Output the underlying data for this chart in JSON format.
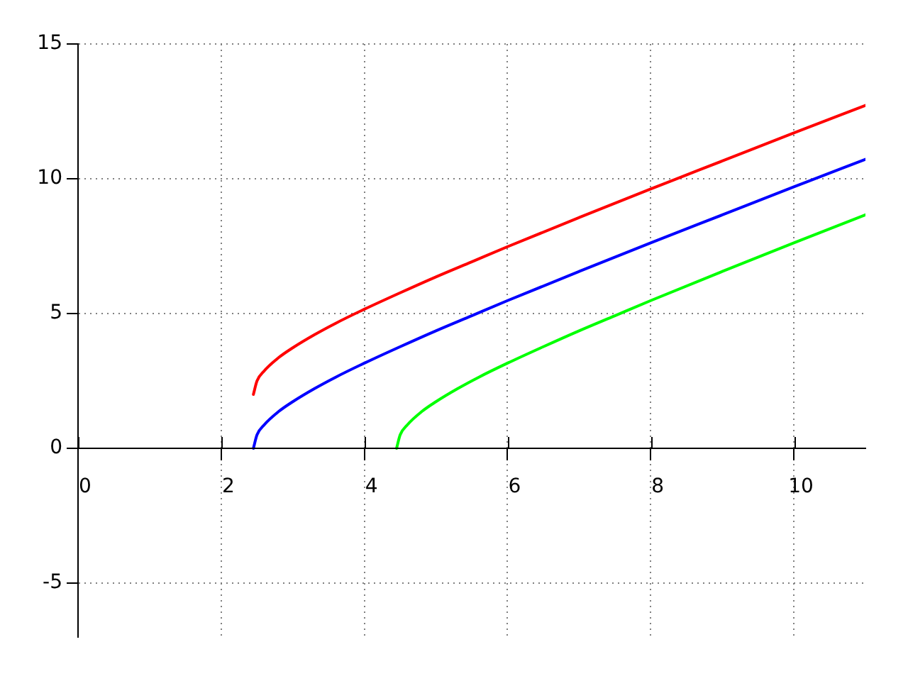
{
  "chart_data": {
    "type": "line",
    "xlim": [
      0,
      11
    ],
    "ylim": [
      -7,
      15
    ],
    "xticks": [
      0,
      2,
      4,
      6,
      8,
      10
    ],
    "yticks": [
      -5,
      0,
      5,
      10,
      15
    ],
    "grid": true,
    "legend": false,
    "marker": "none",
    "line_style": "solid",
    "series": [
      {
        "color": "#ff0000",
        "x": [
          2.45,
          2.5,
          2.6,
          2.8,
          3,
          3.3,
          3.6,
          4,
          4.5,
          5,
          5.5,
          6,
          7,
          8,
          9,
          10,
          11
        ],
        "values": [
          2,
          2.5,
          2.87,
          3.36,
          3.73,
          4.21,
          4.64,
          5.16,
          5.77,
          6.36,
          6.92,
          7.48,
          8.56,
          9.62,
          10.66,
          11.7,
          12.72
        ]
      },
      {
        "color": "#0000ff",
        "x": [
          2.45,
          2.5,
          2.6,
          2.8,
          3,
          3.3,
          3.6,
          4,
          4.5,
          5,
          5.5,
          6,
          7,
          8,
          9,
          10,
          11
        ],
        "values": [
          0,
          0.5,
          0.87,
          1.36,
          1.73,
          2.21,
          2.64,
          3.16,
          3.77,
          4.36,
          4.92,
          5.48,
          6.56,
          7.62,
          8.66,
          9.7,
          10.72
        ]
      },
      {
        "color": "#00ff00",
        "x": [
          4.45,
          4.5,
          4.6,
          4.8,
          5,
          5.3,
          5.6,
          6,
          6.5,
          7,
          7.5,
          8,
          9,
          10,
          11
        ],
        "values": [
          0,
          0.5,
          0.87,
          1.36,
          1.73,
          2.21,
          2.64,
          3.16,
          3.77,
          4.36,
          4.92,
          5.48,
          6.56,
          7.62,
          8.66
        ]
      }
    ]
  }
}
